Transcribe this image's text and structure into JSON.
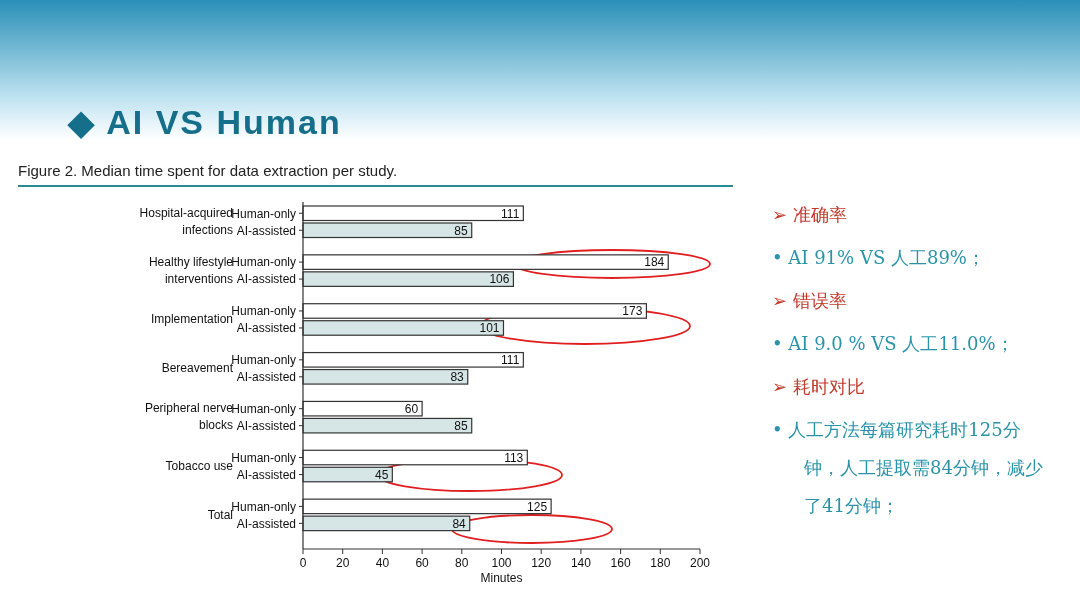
{
  "chart_data": {
    "type": "bar",
    "orientation": "horizontal",
    "title": "◆ AI VS Human",
    "subtitle": "Figure 2. Median time spent for data extraction per study.",
    "categories": [
      "Hospital-acquired infections",
      "Healthy lifestyle interventions",
      "Implementation",
      "Bereavement",
      "Peripheral nerve blocks",
      "Tobacco use",
      "Total"
    ],
    "series": [
      {
        "name": "Human-only",
        "color": "#ffffff",
        "values": [
          111,
          184,
          173,
          111,
          60,
          113,
          125
        ]
      },
      {
        "name": "AI-assisted",
        "color": "#d6e6e6",
        "values": [
          85,
          106,
          101,
          83,
          85,
          45,
          84
        ]
      }
    ],
    "xlabel": "Minutes",
    "xlim": [
      0,
      200
    ],
    "xticks": [
      0,
      20,
      40,
      60,
      80,
      100,
      120,
      140,
      160,
      180,
      200
    ],
    "data_labels": true,
    "grid": false,
    "legend": "left",
    "annotations": [
      "➢ 准确率",
      "• AI 91% VS 人工89%；",
      "➢ 错误率",
      "• AI 9.0 % VS 人工11.0%；",
      "➢ 耗时对比",
      "• 人工方法每篇研究耗时125分钟，人工提取需84分钟，减少了41分钟；"
    ]
  }
}
